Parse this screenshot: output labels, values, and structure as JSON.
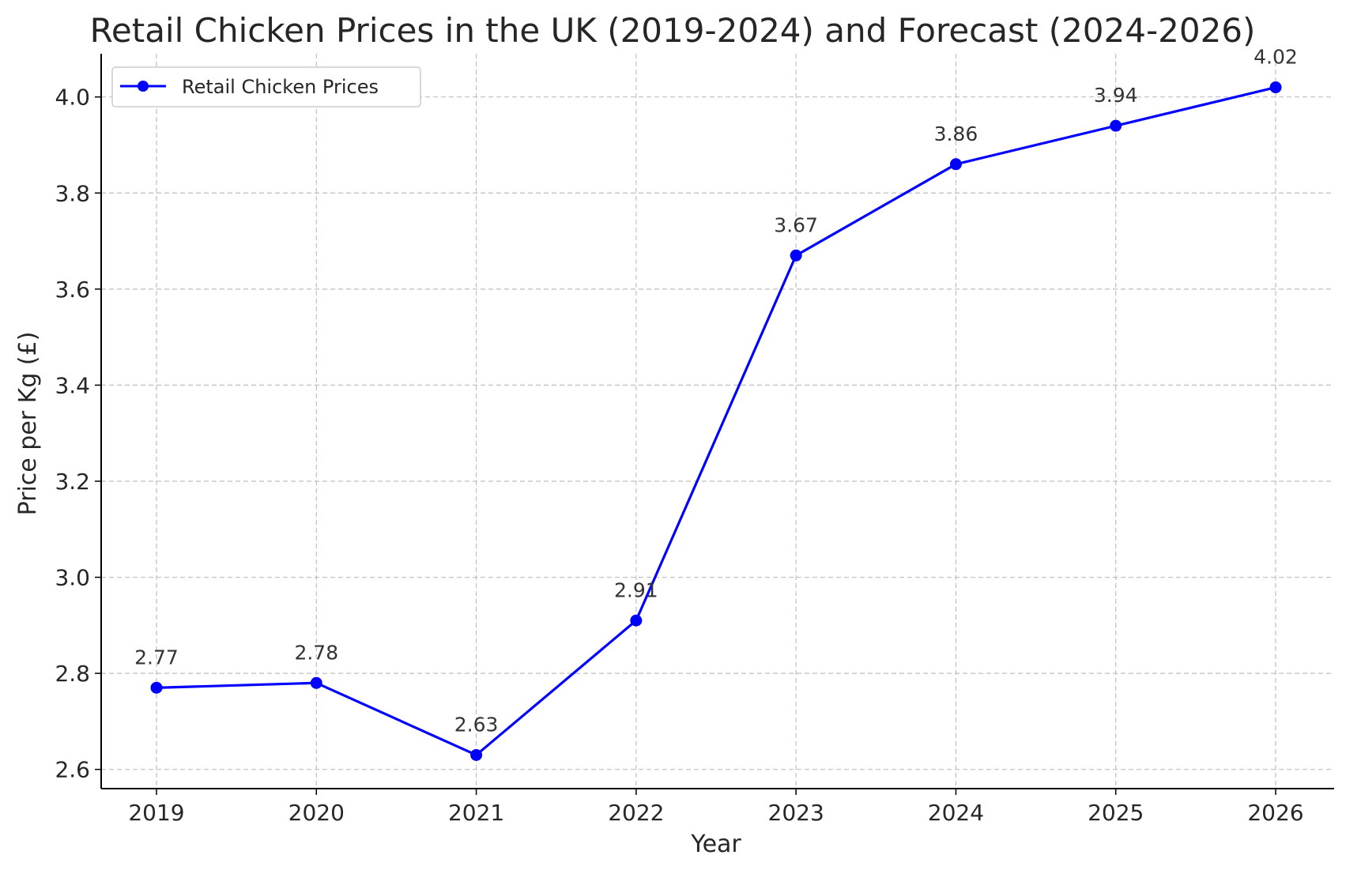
{
  "chart_data": {
    "type": "line",
    "title": "Retail Chicken Prices in the UK (2019-2024) and Forecast (2024-2026)",
    "xlabel": "Year",
    "ylabel": "Price per Kg (£)",
    "x": [
      "2019",
      "2020",
      "2021",
      "2022",
      "2023",
      "2024",
      "2025",
      "2026"
    ],
    "series": [
      {
        "name": "Retail Chicken Prices",
        "values": [
          2.77,
          2.78,
          2.63,
          2.91,
          3.67,
          3.86,
          3.94,
          4.02
        ],
        "data_labels": [
          "2.77",
          "2.78",
          "2.63",
          "2.91",
          "3.67",
          "3.86",
          "3.94",
          "4.02"
        ],
        "color": "#0000ff",
        "marker": "circle"
      }
    ],
    "yticks": [
      "2.6",
      "2.8",
      "3.0",
      "3.2",
      "3.4",
      "3.6",
      "3.8",
      "4.0"
    ],
    "ylim": [
      2.56,
      4.09
    ],
    "grid": true,
    "legend_position": "top-left"
  }
}
